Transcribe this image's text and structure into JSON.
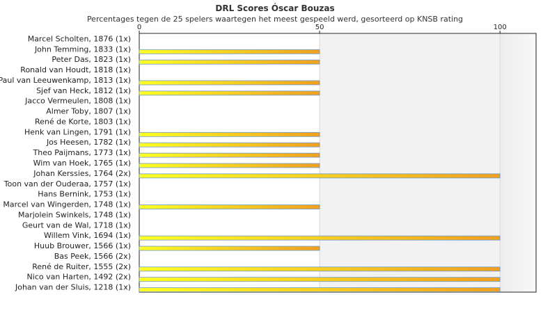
{
  "chart_data": {
    "type": "bar",
    "orientation": "horizontal",
    "title": "DRL Scores Óscar Bouzas",
    "subtitle": "Percentages tegen de 25 spelers waartegen het meest gespeeld werd, gesorteerd op KNSB rating",
    "xlim": [
      0,
      110
    ],
    "xticks": [
      0,
      50,
      100
    ],
    "grid": true,
    "categories": [
      "Marcel Scholten, 1876 (1x)",
      "John Temming, 1833 (1x)",
      "Peter Das, 1823 (1x)",
      "Ronald van Houdt, 1818 (1x)",
      "Paul van Leeuwenkamp, 1813 (1x)",
      "Sjef van Heck, 1812 (1x)",
      "Jacco Vermeulen, 1808 (1x)",
      "Almer Toby, 1807 (1x)",
      "René de Korte, 1803 (1x)",
      "Henk van Lingen, 1791 (1x)",
      "Jos Heesen, 1782 (1x)",
      "Theo Paijmans, 1773 (1x)",
      "Wim van Hoek, 1765 (1x)",
      "Johan Kerssies, 1764 (2x)",
      "Toon van der Ouderaa, 1757 (1x)",
      "Hans Bernink, 1753 (1x)",
      "Marcel van Wingerden, 1748 (1x)",
      "Marjolein Swinkels, 1748 (1x)",
      "Geurt van de Wal, 1718 (1x)",
      "Willem Vink, 1694 (1x)",
      "Huub Brouwer, 1566 (1x)",
      "Bas Peek, 1566 (2x)",
      "René de Ruiter, 1555 (2x)",
      "Nico van Harten, 1492 (2x)",
      "Johan van der Sluis, 1218 (1x)"
    ],
    "values": [
      0,
      50,
      50,
      0,
      50,
      50,
      0,
      0,
      0,
      50,
      50,
      50,
      50,
      100,
      0,
      0,
      50,
      0,
      0,
      100,
      50,
      0,
      100,
      100,
      100
    ],
    "colors": {
      "bar_start": "#ffff22",
      "bar_end": "#f0a020",
      "bar_border": "#6a9ad0",
      "band_light": "#f2f2f2",
      "band_dark": "#e8e8ec",
      "axis": "#222222"
    }
  }
}
